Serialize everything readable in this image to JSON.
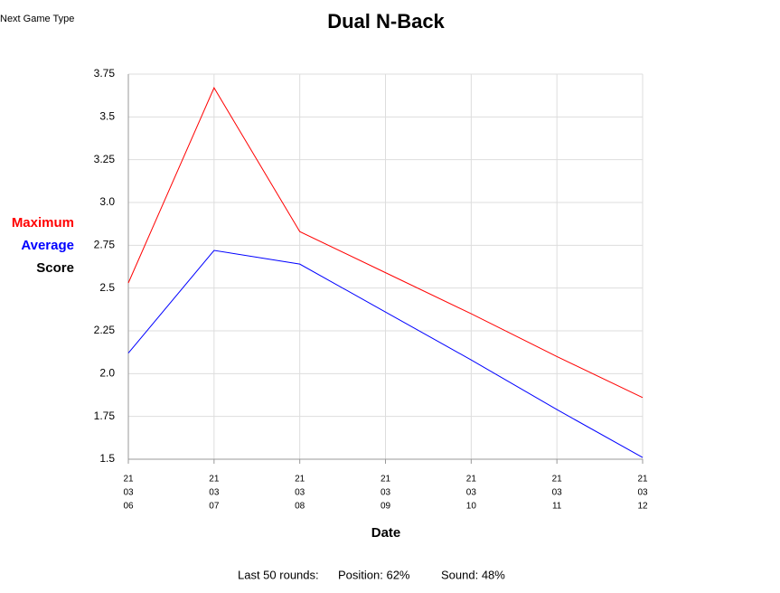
{
  "button": "Next Game Type",
  "chart_data": {
    "type": "line",
    "title": "Dual N-Back",
    "x_label": "Date",
    "y_label": "Score",
    "categories": [
      [
        "21",
        "03",
        "06"
      ],
      [
        "21",
        "03",
        "07"
      ],
      [
        "21",
        "03",
        "08"
      ],
      [
        "21",
        "03",
        "09"
      ],
      [
        "21",
        "03",
        "10"
      ],
      [
        "21",
        "03",
        "11"
      ],
      [
        "21",
        "03",
        "12"
      ]
    ],
    "series": [
      {
        "name": "Maximum",
        "color": "#ff0000",
        "values": [
          2.53,
          3.67,
          2.83,
          2.59,
          2.35,
          2.1,
          1.86
        ]
      },
      {
        "name": "Average",
        "color": "#0000ff",
        "values": [
          2.12,
          2.72,
          2.64,
          2.36,
          2.08,
          1.79,
          1.51
        ]
      }
    ],
    "ylim": [
      1.5,
      3.75
    ],
    "yticks": [
      1.5,
      1.75,
      {
        "value": 2,
        "label": "2.0"
      },
      2.25,
      2.5,
      2.75,
      {
        "value": 3,
        "label": "3.0"
      },
      3.25,
      3.5,
      3.75
    ],
    "grid": true
  },
  "footer": [
    "Last 50 rounds:",
    "Position: 62%",
    "Sound: 48%"
  ]
}
